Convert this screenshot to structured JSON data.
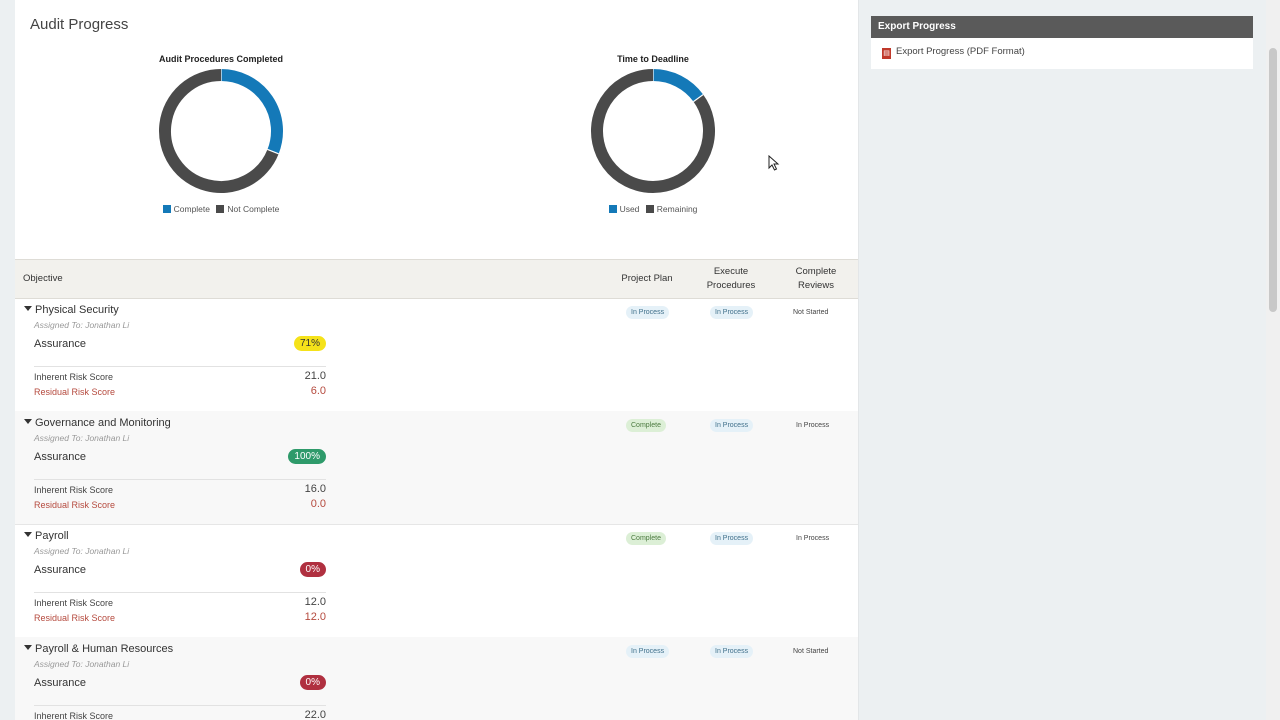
{
  "page": {
    "title": "Audit Progress"
  },
  "charts": [
    {
      "title": "Audit Procedures Completed",
      "legend": [
        {
          "label": "Complete",
          "color": "#1479b8"
        },
        {
          "label": "Not Complete",
          "color": "#4a4a4a"
        }
      ]
    },
    {
      "title": "Time to Deadline",
      "legend": [
        {
          "label": "Used",
          "color": "#1479b8"
        },
        {
          "label": "Remaining",
          "color": "#4a4a4a"
        }
      ]
    }
  ],
  "chart_data": [
    {
      "type": "pie",
      "title": "Audit Procedures Completed",
      "categories": [
        "Complete",
        "Not Complete"
      ],
      "values": [
        0.31,
        0.69
      ],
      "donut": true,
      "legend_position": "bottom"
    },
    {
      "type": "pie",
      "title": "Time to Deadline",
      "categories": [
        "Used",
        "Remaining"
      ],
      "values": [
        0.15,
        0.85
      ],
      "donut": true,
      "legend_position": "bottom"
    }
  ],
  "table": {
    "headers": {
      "objective": "Objective",
      "project_plan": "Project Plan",
      "execute": "Execute Procedures",
      "reviews": "Complete Reviews"
    },
    "rows": [
      {
        "name": "Physical Security",
        "assigned": "Assigned To: Jonathan Li",
        "assurance_label": "Assurance",
        "assurance": "71%",
        "assurance_color": "#f5e21a",
        "assurance_text": "#333333",
        "inherent_label": "Inherent Risk Score",
        "inherent": "21.0",
        "residual_label": "Residual Risk Score",
        "residual": "6.0",
        "project_plan": "In Process",
        "execute": "In Process",
        "reviews": "Not Started"
      },
      {
        "name": "Governance and Monitoring",
        "assigned": "Assigned To: Jonathan Li",
        "assurance_label": "Assurance",
        "assurance": "100%",
        "assurance_color": "#2e9a6a",
        "assurance_text": "#ffffff",
        "inherent_label": "Inherent Risk Score",
        "inherent": "16.0",
        "residual_label": "Residual Risk Score",
        "residual": "0.0",
        "project_plan": "Complete",
        "execute": "In Process",
        "reviews": "In Process"
      },
      {
        "name": "Payroll",
        "assigned": "Assigned To: Jonathan Li",
        "assurance_label": "Assurance",
        "assurance": "0%",
        "assurance_color": "#b03040",
        "assurance_text": "#ffffff",
        "inherent_label": "Inherent Risk Score",
        "inherent": "12.0",
        "residual_label": "Residual Risk Score",
        "residual": "12.0",
        "project_plan": "Complete",
        "execute": "In Process",
        "reviews": "In Process"
      },
      {
        "name": "Payroll & Human Resources",
        "assigned": "Assigned To: Jonathan Li",
        "assurance_label": "Assurance",
        "assurance": "0%",
        "assurance_color": "#b03040",
        "assurance_text": "#ffffff",
        "inherent_label": "Inherent Risk Score",
        "inherent": "22.0",
        "residual_label": "Residual Risk Score",
        "residual": "",
        "project_plan": "In Process",
        "execute": "In Process",
        "reviews": "Not Started"
      }
    ]
  },
  "sidebar": {
    "header": "Export Progress",
    "link": "Export Progress (PDF Format)",
    "link_icon": "pdf-icon"
  }
}
